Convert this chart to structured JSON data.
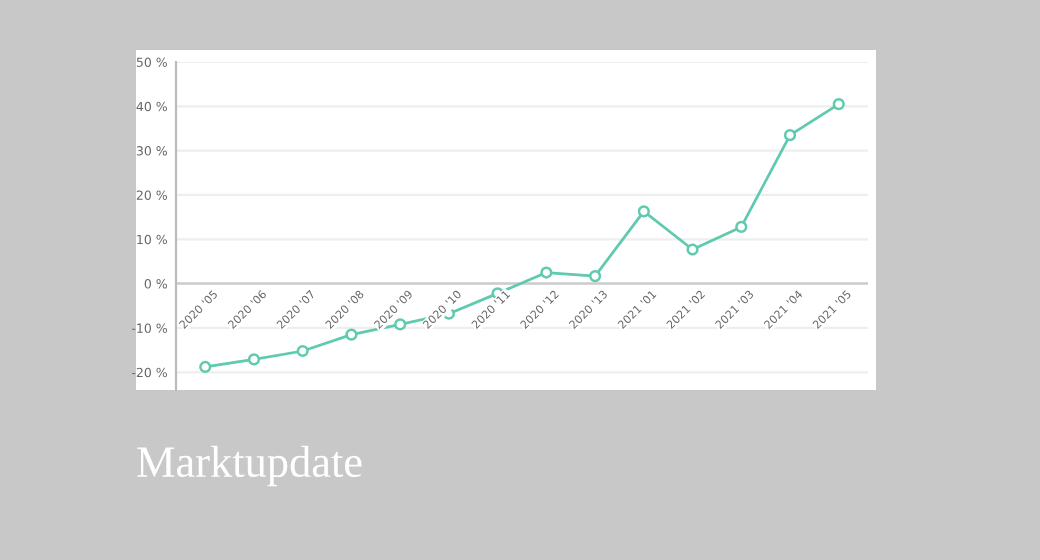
{
  "chart_data": {
    "type": "line",
    "title": "Marktupdate",
    "categories": [
      "2020 '05",
      "2020 '06",
      "2020 '07",
      "2020 '08",
      "2020 '09",
      "2020 '10",
      "2020 '11",
      "2020 '12",
      "2020 '13",
      "2021 '01",
      "2021 '02",
      "2021 '03",
      "2021 '04",
      "2021 '05"
    ],
    "series": [
      {
        "color": "#5fcab0",
        "values": [
          -18.8,
          -17.1,
          -15.2,
          -11.5,
          -9.2,
          -6.8,
          -2.2,
          2.5,
          1.7,
          16.3,
          7.7,
          12.8,
          33.5,
          40.5
        ]
      }
    ],
    "ylim": [
      -24,
      50
    ],
    "yticks": [
      {
        "value": -20,
        "label": "-20 %"
      },
      {
        "value": -10,
        "label": "-10 %"
      },
      {
        "value": 0,
        "label": "0 %"
      },
      {
        "value": 10,
        "label": "10 %"
      },
      {
        "value": 20,
        "label": "20 %"
      },
      {
        "value": 30,
        "label": "30 %"
      },
      {
        "value": 40,
        "label": "40 %"
      },
      {
        "value": 50,
        "label": "50 %"
      }
    ],
    "grid": "y",
    "marker": "circle",
    "line_style": "solid",
    "legend": false
  }
}
